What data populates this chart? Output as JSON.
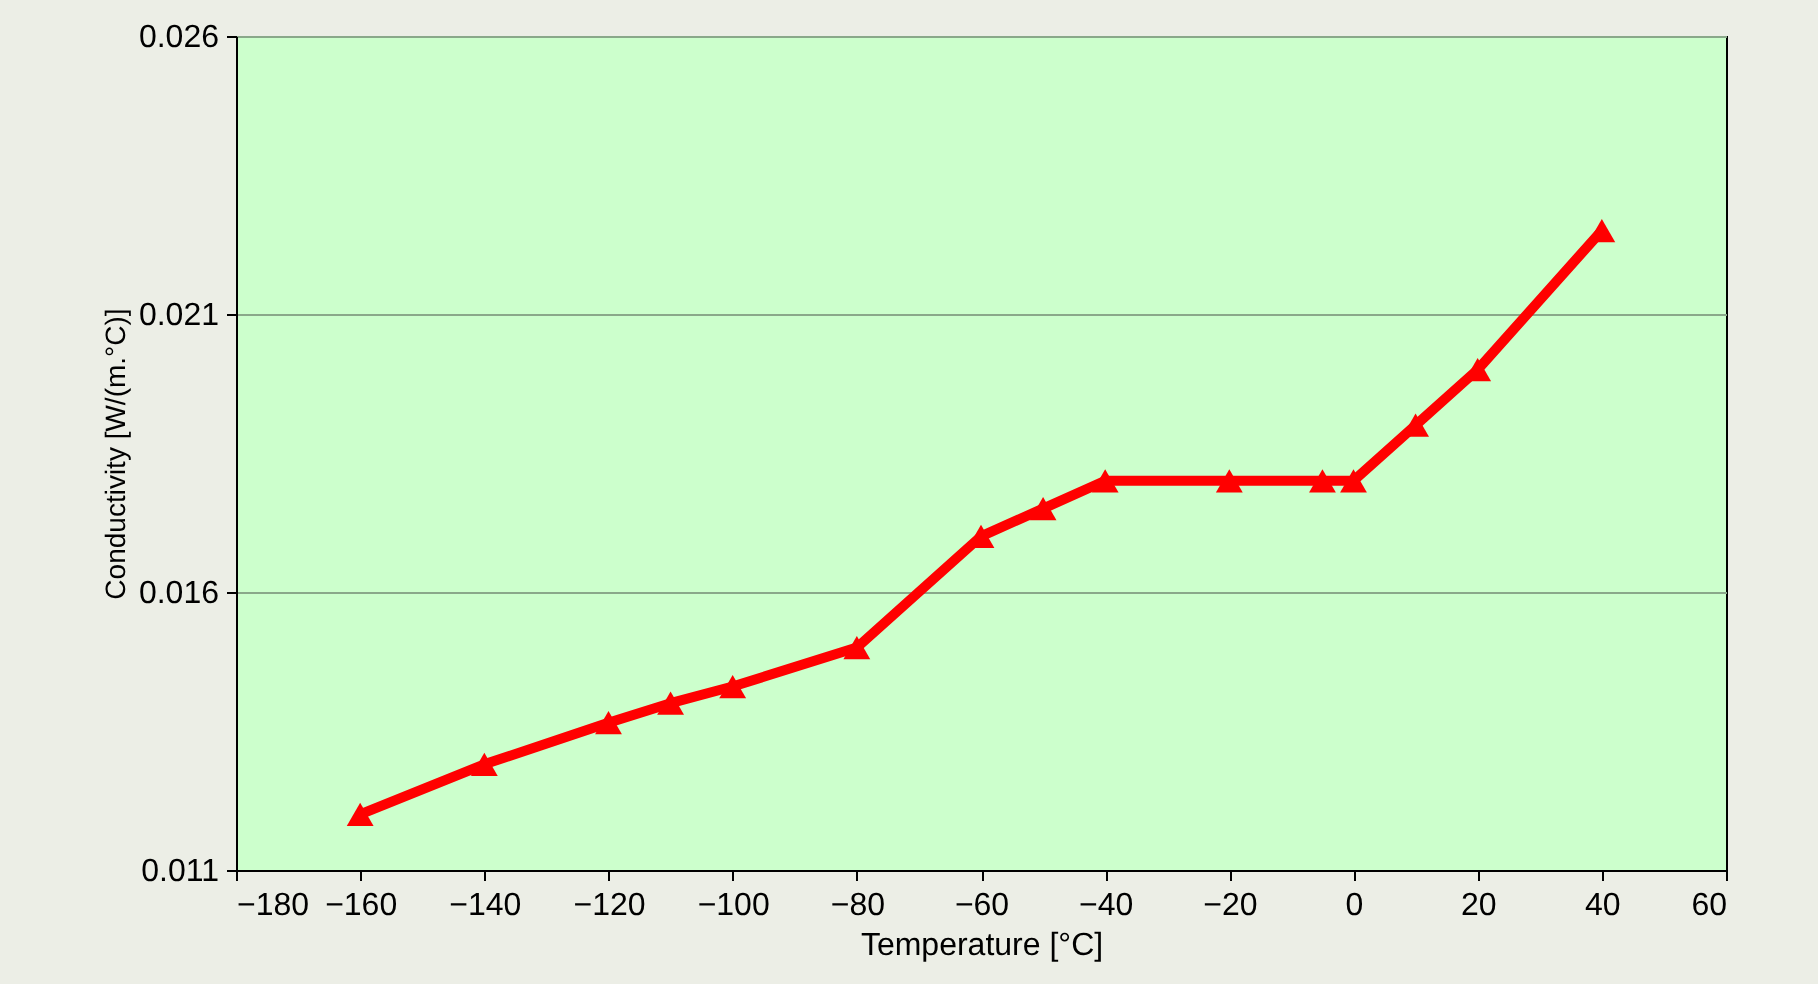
{
  "chart_data": {
    "type": "line",
    "xlabel": "Temperature [°C]",
    "ylabel": "Conductivity  [W/(m.°C)]",
    "x": [
      -160,
      -140,
      -120,
      -110,
      -100,
      -80,
      -60,
      -50,
      -40,
      -20,
      -5,
      0,
      10,
      20,
      40
    ],
    "series": [
      {
        "color": "#ff0000",
        "values": [
          0.012,
          0.0129,
          0.01365,
          0.014,
          0.0143,
          0.015,
          0.017,
          0.0175,
          0.018,
          0.018,
          0.018,
          0.018,
          0.019,
          0.02,
          0.0225
        ]
      }
    ],
    "xlim": [
      -180,
      60
    ],
    "xticks": [
      -180,
      -160,
      -140,
      -120,
      -100,
      -80,
      -60,
      -40,
      -20,
      0,
      20,
      40,
      60
    ],
    "ylim": [
      0.011,
      0.026
    ],
    "yticks": [
      0.011,
      0.016,
      0.021,
      0.026
    ],
    "grid": "y",
    "marker": "triangle",
    "line_style": "solid"
  }
}
